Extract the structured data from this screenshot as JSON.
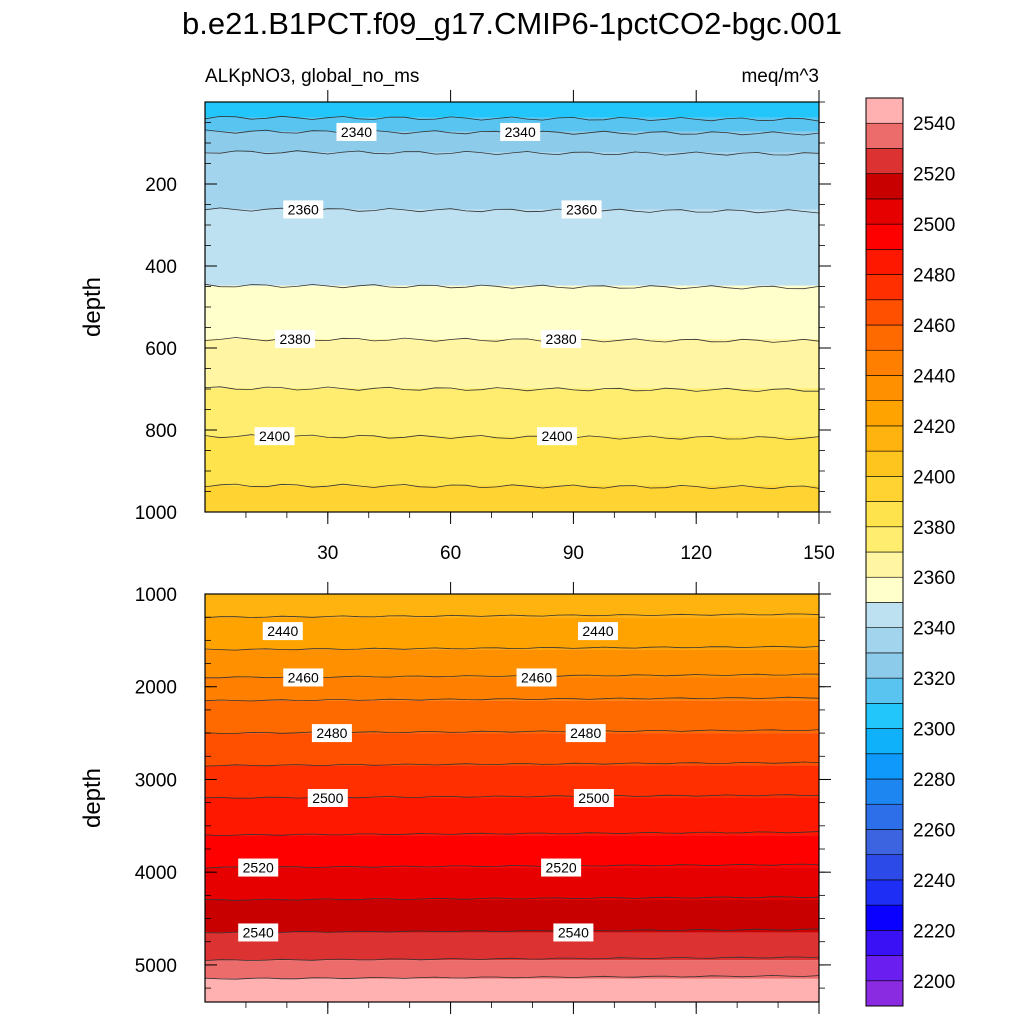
{
  "header": {
    "title": "b.e21.B1PCT.f09_g17.CMIP6-1pctCO2-bgc.001",
    "subtitle_left": "ALKpNO3, global_no_ms",
    "subtitle_right": "meq/m^3"
  },
  "chart_data": {
    "type": "contour",
    "units": "meq/m^3",
    "colorbar": {
      "levels": [
        2200,
        2210,
        2220,
        2230,
        2240,
        2250,
        2260,
        2270,
        2280,
        2290,
        2300,
        2310,
        2320,
        2330,
        2340,
        2350,
        2360,
        2370,
        2380,
        2390,
        2400,
        2410,
        2420,
        2430,
        2440,
        2450,
        2460,
        2470,
        2480,
        2490,
        2500,
        2510,
        2520,
        2530,
        2540,
        2550
      ],
      "colors": [
        "#8a2be2",
        "#6a1ff0",
        "#3a10f5",
        "#0a00ff",
        "#1e2ef5",
        "#2c4ae8",
        "#3c63e0",
        "#2d6fe8",
        "#1e86f0",
        "#0f99fa",
        "#0fb2fa",
        "#23c6fa",
        "#5ac4f0",
        "#8dcbea",
        "#a3d4ee",
        "#bde1f1",
        "#ffffcc",
        "#fff5a3",
        "#ffed70",
        "#ffe34d",
        "#ffd432",
        "#ffc51f",
        "#ffb30f",
        "#ffa300",
        "#ff9000",
        "#ff7f00",
        "#ff6a00",
        "#ff5000",
        "#ff2f00",
        "#ff1800",
        "#ff0000",
        "#e60000",
        "#c80000",
        "#dc3232",
        "#ec6b6b",
        "#ffb0b0"
      ],
      "tick_labels": [
        "2200",
        "2220",
        "2240",
        "2260",
        "2280",
        "2300",
        "2320",
        "2340",
        "2360",
        "2380",
        "2400",
        "2420",
        "2440",
        "2460",
        "2480",
        "2500",
        "2520",
        "2540"
      ]
    },
    "panels": [
      {
        "ylabel": "depth",
        "ylim": [
          1000,
          0
        ],
        "xlim": [
          0,
          150
        ],
        "yticks": [
          200,
          400,
          600,
          800,
          1000
        ],
        "xticks": [
          30,
          60,
          90,
          120,
          150
        ],
        "bands": [
          {
            "from": 0,
            "to": 38,
            "color": "#23c6fa"
          },
          {
            "from": 38,
            "to": 72,
            "color": "#5ac4f0"
          },
          {
            "from": 72,
            "to": 122,
            "color": "#8dcbea"
          },
          {
            "from": 122,
            "to": 262,
            "color": "#a3d4ee"
          },
          {
            "from": 262,
            "to": 448,
            "color": "#bde1f1"
          },
          {
            "from": 448,
            "to": 578,
            "color": "#ffffcc"
          },
          {
            "from": 578,
            "to": 698,
            "color": "#fff5a3"
          },
          {
            "from": 698,
            "to": 815,
            "color": "#ffed70"
          },
          {
            "from": 815,
            "to": 935,
            "color": "#ffe34d"
          },
          {
            "from": 935,
            "to": 1000,
            "color": "#ffd432"
          }
        ],
        "contour_labels": [
          {
            "x": 37,
            "depth": 73,
            "value": "2340"
          },
          {
            "x": 77,
            "depth": 73,
            "value": "2340"
          },
          {
            "x": 24,
            "depth": 262,
            "value": "2360"
          },
          {
            "x": 92,
            "depth": 262,
            "value": "2360"
          },
          {
            "x": 22,
            "depth": 578,
            "value": "2380"
          },
          {
            "x": 87,
            "depth": 578,
            "value": "2380"
          },
          {
            "x": 17,
            "depth": 815,
            "value": "2400"
          },
          {
            "x": 86,
            "depth": 815,
            "value": "2400"
          }
        ]
      },
      {
        "ylabel": "depth",
        "ylim": [
          5400,
          1000
        ],
        "xlim": [
          0,
          150
        ],
        "yticks": [
          1000,
          2000,
          3000,
          4000,
          5000
        ],
        "xticks": [
          30,
          60,
          90,
          120,
          150
        ],
        "bands": [
          {
            "from": 1000,
            "to": 1250,
            "color": "#ffb30f"
          },
          {
            "from": 1250,
            "to": 1600,
            "color": "#ffa300"
          },
          {
            "from": 1600,
            "to": 1900,
            "color": "#ff9000"
          },
          {
            "from": 1900,
            "to": 2150,
            "color": "#ff7f00"
          },
          {
            "from": 2150,
            "to": 2500,
            "color": "#ff6a00"
          },
          {
            "from": 2500,
            "to": 2850,
            "color": "#ff5000"
          },
          {
            "from": 2850,
            "to": 3200,
            "color": "#ff2f00"
          },
          {
            "from": 3200,
            "to": 3600,
            "color": "#ff1800"
          },
          {
            "from": 3600,
            "to": 3950,
            "color": "#ff0000"
          },
          {
            "from": 3950,
            "to": 4300,
            "color": "#e60000"
          },
          {
            "from": 4300,
            "to": 4650,
            "color": "#c80000"
          },
          {
            "from": 4650,
            "to": 4950,
            "color": "#dc3232"
          },
          {
            "from": 4950,
            "to": 5150,
            "color": "#ec6b6b"
          },
          {
            "from": 5150,
            "to": 5400,
            "color": "#ffb0b0"
          }
        ],
        "contour_labels": [
          {
            "x": 19,
            "depth": 1400,
            "value": "2440"
          },
          {
            "x": 96,
            "depth": 1400,
            "value": "2440"
          },
          {
            "x": 24,
            "depth": 1900,
            "value": "2460"
          },
          {
            "x": 81,
            "depth": 1900,
            "value": "2460"
          },
          {
            "x": 31,
            "depth": 2500,
            "value": "2480"
          },
          {
            "x": 93,
            "depth": 2500,
            "value": "2480"
          },
          {
            "x": 30,
            "depth": 3200,
            "value": "2500"
          },
          {
            "x": 95,
            "depth": 3200,
            "value": "2500"
          },
          {
            "x": 13,
            "depth": 3950,
            "value": "2520"
          },
          {
            "x": 87,
            "depth": 3950,
            "value": "2520"
          },
          {
            "x": 13,
            "depth": 4650,
            "value": "2540"
          },
          {
            "x": 90,
            "depth": 4650,
            "value": "2540"
          }
        ]
      }
    ]
  }
}
